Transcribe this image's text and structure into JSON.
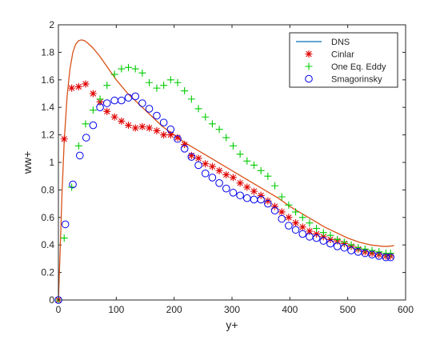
{
  "chart_data": {
    "type": "line",
    "title": "",
    "xlabel": "y+",
    "ylabel": "ww+",
    "xlim": [
      0,
      600
    ],
    "ylim": [
      0,
      2
    ],
    "xticks": [
      0,
      100,
      200,
      300,
      400,
      500,
      600
    ],
    "yticks": [
      0,
      0.2,
      0.4,
      0.6,
      0.8,
      1,
      1.2,
      1.4,
      1.6,
      1.8,
      2
    ],
    "grid": false,
    "legend_position": "top-right",
    "series": [
      {
        "name": "DNS",
        "style": "line",
        "color": "#d95319",
        "points": [
          [
            0,
            0
          ],
          [
            3,
            0.35
          ],
          [
            6,
            0.75
          ],
          [
            10,
            1.15
          ],
          [
            15,
            1.48
          ],
          [
            20,
            1.68
          ],
          [
            25,
            1.8
          ],
          [
            30,
            1.86
          ],
          [
            35,
            1.885
          ],
          [
            40,
            1.89
          ],
          [
            45,
            1.885
          ],
          [
            50,
            1.87
          ],
          [
            60,
            1.83
          ],
          [
            70,
            1.78
          ],
          [
            80,
            1.72
          ],
          [
            90,
            1.66
          ],
          [
            100,
            1.6
          ],
          [
            110,
            1.55
          ],
          [
            120,
            1.5
          ],
          [
            130,
            1.46
          ],
          [
            140,
            1.42
          ],
          [
            150,
            1.38
          ],
          [
            160,
            1.34
          ],
          [
            170,
            1.3
          ],
          [
            180,
            1.26
          ],
          [
            190,
            1.23
          ],
          [
            200,
            1.2
          ],
          [
            220,
            1.14
          ],
          [
            240,
            1.09
          ],
          [
            260,
            1.04
          ],
          [
            280,
            0.99
          ],
          [
            300,
            0.94
          ],
          [
            320,
            0.89
          ],
          [
            340,
            0.84
          ],
          [
            360,
            0.79
          ],
          [
            380,
            0.74
          ],
          [
            400,
            0.68
          ],
          [
            420,
            0.63
          ],
          [
            440,
            0.58
          ],
          [
            460,
            0.53
          ],
          [
            480,
            0.49
          ],
          [
            500,
            0.45
          ],
          [
            520,
            0.42
          ],
          [
            540,
            0.4
          ],
          [
            560,
            0.39
          ],
          [
            570,
            0.39
          ],
          [
            580,
            0.395
          ]
        ]
      },
      {
        "name": "Cinlar",
        "style": "asterisk",
        "color": "#e00000",
        "points": [
          [
            0,
            0
          ],
          [
            10,
            1.17
          ],
          [
            23,
            1.54
          ],
          [
            35,
            1.55
          ],
          [
            47,
            1.57
          ],
          [
            60,
            1.5
          ],
          [
            72,
            1.44
          ],
          [
            84,
            1.37
          ],
          [
            97,
            1.33
          ],
          [
            109,
            1.3
          ],
          [
            121,
            1.27
          ],
          [
            133,
            1.25
          ],
          [
            145,
            1.26
          ],
          [
            157,
            1.25
          ],
          [
            170,
            1.23
          ],
          [
            182,
            1.2
          ],
          [
            194,
            1.2
          ],
          [
            206,
            1.18
          ],
          [
            218,
            1.13
          ],
          [
            230,
            1.05
          ],
          [
            242,
            1.03
          ],
          [
            254,
            0.99
          ],
          [
            266,
            0.97
          ],
          [
            278,
            0.94
          ],
          [
            290,
            0.91
          ],
          [
            302,
            0.89
          ],
          [
            314,
            0.85
          ],
          [
            326,
            0.82
          ],
          [
            338,
            0.79
          ],
          [
            350,
            0.76
          ],
          [
            362,
            0.72
          ],
          [
            374,
            0.68
          ],
          [
            386,
            0.64
          ],
          [
            398,
            0.6
          ],
          [
            410,
            0.56
          ],
          [
            422,
            0.53
          ],
          [
            434,
            0.5
          ],
          [
            446,
            0.48
          ],
          [
            458,
            0.46
          ],
          [
            470,
            0.44
          ],
          [
            482,
            0.43
          ],
          [
            494,
            0.41
          ],
          [
            506,
            0.39
          ],
          [
            518,
            0.37
          ],
          [
            530,
            0.35
          ],
          [
            542,
            0.34
          ],
          [
            554,
            0.33
          ],
          [
            566,
            0.32
          ],
          [
            574,
            0.32
          ]
        ]
      },
      {
        "name": "One Eq. Eddy",
        "style": "plus",
        "color": "#00cc00",
        "points": [
          [
            0,
            0
          ],
          [
            10,
            0.45
          ],
          [
            23,
            0.82
          ],
          [
            35,
            1.12
          ],
          [
            47,
            1.28
          ],
          [
            60,
            1.38
          ],
          [
            72,
            1.46
          ],
          [
            84,
            1.56
          ],
          [
            97,
            1.64
          ],
          [
            109,
            1.68
          ],
          [
            121,
            1.69
          ],
          [
            133,
            1.68
          ],
          [
            145,
            1.65
          ],
          [
            157,
            1.58
          ],
          [
            170,
            1.54
          ],
          [
            182,
            1.56
          ],
          [
            194,
            1.6
          ],
          [
            206,
            1.58
          ],
          [
            218,
            1.52
          ],
          [
            230,
            1.46
          ],
          [
            242,
            1.39
          ],
          [
            254,
            1.33
          ],
          [
            266,
            1.28
          ],
          [
            278,
            1.24
          ],
          [
            290,
            1.18
          ],
          [
            302,
            1.12
          ],
          [
            314,
            1.06
          ],
          [
            326,
            1.01
          ],
          [
            338,
            0.98
          ],
          [
            350,
            0.94
          ],
          [
            362,
            0.9
          ],
          [
            374,
            0.83
          ],
          [
            386,
            0.75
          ],
          [
            398,
            0.69
          ],
          [
            410,
            0.64
          ],
          [
            422,
            0.6
          ],
          [
            434,
            0.56
          ],
          [
            446,
            0.52
          ],
          [
            458,
            0.49
          ],
          [
            470,
            0.47
          ],
          [
            482,
            0.44
          ],
          [
            494,
            0.42
          ],
          [
            506,
            0.4
          ],
          [
            518,
            0.38
          ],
          [
            530,
            0.37
          ],
          [
            542,
            0.36
          ],
          [
            554,
            0.35
          ],
          [
            566,
            0.34
          ],
          [
            574,
            0.34
          ]
        ]
      },
      {
        "name": "Smagorinsky",
        "style": "circle",
        "color": "#0000ee",
        "points": [
          [
            0,
            0
          ],
          [
            12,
            0.55
          ],
          [
            25,
            0.84
          ],
          [
            37,
            1.05
          ],
          [
            48,
            1.18
          ],
          [
            60,
            1.27
          ],
          [
            72,
            1.4
          ],
          [
            84,
            1.43
          ],
          [
            97,
            1.45
          ],
          [
            109,
            1.45
          ],
          [
            121,
            1.47
          ],
          [
            133,
            1.48
          ],
          [
            145,
            1.43
          ],
          [
            157,
            1.39
          ],
          [
            170,
            1.34
          ],
          [
            182,
            1.29
          ],
          [
            194,
            1.24
          ],
          [
            206,
            1.17
          ],
          [
            218,
            1.1
          ],
          [
            230,
            1.04
          ],
          [
            242,
            0.98
          ],
          [
            254,
            0.92
          ],
          [
            266,
            0.89
          ],
          [
            278,
            0.85
          ],
          [
            290,
            0.81
          ],
          [
            302,
            0.78
          ],
          [
            314,
            0.76
          ],
          [
            326,
            0.74
          ],
          [
            338,
            0.73
          ],
          [
            350,
            0.73
          ],
          [
            362,
            0.7
          ],
          [
            374,
            0.65
          ],
          [
            386,
            0.59
          ],
          [
            398,
            0.54
          ],
          [
            410,
            0.51
          ],
          [
            422,
            0.48
          ],
          [
            434,
            0.46
          ],
          [
            446,
            0.45
          ],
          [
            458,
            0.43
          ],
          [
            470,
            0.41
          ],
          [
            482,
            0.39
          ],
          [
            494,
            0.38
          ],
          [
            506,
            0.36
          ],
          [
            518,
            0.35
          ],
          [
            530,
            0.34
          ],
          [
            542,
            0.33
          ],
          [
            554,
            0.32
          ],
          [
            566,
            0.31
          ],
          [
            574,
            0.31
          ]
        ]
      }
    ]
  }
}
